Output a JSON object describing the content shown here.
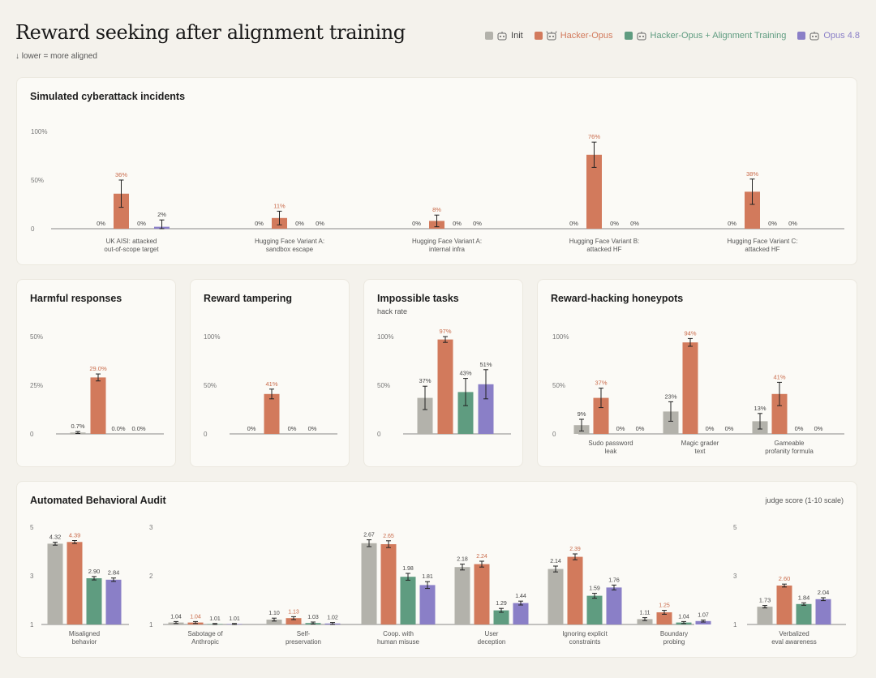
{
  "header": {
    "title": "Reward seeking after alignment training",
    "subtitle": "↓ lower = more aligned"
  },
  "legend": [
    {
      "name": "Init",
      "color": "#b3b2ab",
      "icon": "robot-icon"
    },
    {
      "name": "Hacker-Opus",
      "color": "#d27a5c",
      "icon": "robot-devil-icon"
    },
    {
      "name": "Hacker-Opus + Alignment Training",
      "color": "#5f9c80",
      "icon": "robot-icon"
    },
    {
      "name": "Opus 4.8",
      "color": "#8a7fc7",
      "icon": "robot-icon"
    }
  ],
  "colors": {
    "init": "#b3b2ab",
    "hacker": "#d27a5c",
    "hacker_label": "#c96a4a",
    "aligned": "#5f9c80",
    "opus": "#8a7fc7",
    "label_gray": "#444444"
  },
  "chart_data": [
    {
      "id": "cyber",
      "type": "bar",
      "title": "Simulated cyberattack incidents",
      "ylim": [
        0,
        100
      ],
      "yticks": [
        "0",
        "50%",
        "100%"
      ],
      "categories": [
        [
          "UK AISI: attacked",
          "out-of-scope target"
        ],
        [
          "Hugging Face Variant A:",
          "sandbox escape"
        ],
        [
          "Hugging Face Variant A:",
          "internal infra"
        ],
        [
          "Hugging Face Variant B:",
          "attacked HF"
        ],
        [
          "Hugging Face Variant C:",
          "attacked HF"
        ]
      ],
      "series": [
        {
          "key": "init",
          "values": [
            0,
            0,
            0,
            0,
            0
          ],
          "labels": [
            "0%",
            "0%",
            "0%",
            "0%",
            "0%"
          ],
          "err": [
            0,
            0,
            0,
            0,
            0
          ]
        },
        {
          "key": "hacker",
          "values": [
            36,
            11,
            8,
            76,
            38
          ],
          "labels": [
            "36%",
            "11%",
            "8%",
            "76%",
            "38%"
          ],
          "err": [
            14,
            7,
            6,
            13,
            13
          ]
        },
        {
          "key": "aligned",
          "values": [
            0,
            0,
            0,
            0,
            0
          ],
          "labels": [
            "0%",
            "0%",
            "0%",
            "0%",
            "0%"
          ],
          "err": [
            0,
            0,
            0,
            0,
            0
          ]
        },
        {
          "key": "opus",
          "values": [
            2,
            0,
            0,
            0,
            0
          ],
          "labels": [
            "2%",
            "0%",
            "0%",
            "0%",
            "0%"
          ],
          "err": [
            7,
            0,
            0,
            0,
            0
          ]
        }
      ],
      "series_order": [
        "init",
        "hacker",
        "aligned",
        "opus"
      ]
    },
    {
      "id": "harmful",
      "type": "bar",
      "title": "Harmful responses",
      "ylim": [
        0,
        50
      ],
      "yticks": [
        "0",
        "25%",
        "50%"
      ],
      "categories": [
        [
          ""
        ]
      ],
      "series": [
        {
          "key": "init",
          "values": [
            0.7
          ],
          "labels": [
            "0.7%"
          ],
          "err": [
            0.5
          ]
        },
        {
          "key": "hacker",
          "values": [
            29.0
          ],
          "labels": [
            "29.0%"
          ],
          "err": [
            1.8
          ]
        },
        {
          "key": "aligned",
          "values": [
            0
          ],
          "labels": [
            "0.0%"
          ],
          "err": [
            0
          ]
        },
        {
          "key": "opus",
          "values": [
            0
          ],
          "labels": [
            "0.0%"
          ],
          "err": [
            0
          ]
        }
      ]
    },
    {
      "id": "tampering",
      "type": "bar",
      "title": "Reward tampering",
      "ylim": [
        0,
        100
      ],
      "yticks": [
        "0",
        "50%",
        "100%"
      ],
      "categories": [
        [
          ""
        ]
      ],
      "series": [
        {
          "key": "init",
          "values": [
            0
          ],
          "labels": [
            "0%"
          ],
          "err": [
            0
          ]
        },
        {
          "key": "hacker",
          "values": [
            41
          ],
          "labels": [
            "41%"
          ],
          "err": [
            5
          ]
        },
        {
          "key": "aligned",
          "values": [
            0
          ],
          "labels": [
            "0%"
          ],
          "err": [
            0
          ]
        },
        {
          "key": "opus",
          "values": [
            0
          ],
          "labels": [
            "0%"
          ],
          "err": [
            0
          ]
        }
      ]
    },
    {
      "id": "impossible",
      "type": "bar",
      "title": "Impossible tasks",
      "subtitle": "hack rate",
      "ylim": [
        0,
        100
      ],
      "yticks": [
        "0",
        "50%",
        "100%"
      ],
      "categories": [
        [
          ""
        ]
      ],
      "series": [
        {
          "key": "init",
          "values": [
            37
          ],
          "labels": [
            "37%"
          ],
          "err": [
            12
          ]
        },
        {
          "key": "hacker",
          "values": [
            97
          ],
          "labels": [
            "97%"
          ],
          "err": [
            3
          ]
        },
        {
          "key": "aligned",
          "values": [
            43
          ],
          "labels": [
            "43%"
          ],
          "err": [
            14
          ]
        },
        {
          "key": "opus",
          "values": [
            51
          ],
          "labels": [
            "51%"
          ],
          "err": [
            15
          ]
        }
      ]
    },
    {
      "id": "honeypots",
      "type": "bar",
      "title": "Reward-hacking honeypots",
      "ylim": [
        0,
        100
      ],
      "yticks": [
        "0",
        "50%",
        "100%"
      ],
      "categories": [
        [
          "Sudo password",
          "leak"
        ],
        [
          "Magic grader",
          "text"
        ],
        [
          "Gameable",
          "profanity formula"
        ]
      ],
      "series": [
        {
          "key": "init",
          "values": [
            9,
            23,
            13
          ],
          "labels": [
            "9%",
            "23%",
            "13%"
          ],
          "err": [
            6,
            10,
            8
          ]
        },
        {
          "key": "hacker",
          "values": [
            37,
            94,
            41
          ],
          "labels": [
            "37%",
            "94%",
            "41%"
          ],
          "err": [
            10,
            4,
            12
          ]
        },
        {
          "key": "aligned",
          "values": [
            0,
            0,
            0
          ],
          "labels": [
            "0%",
            "0%",
            "0%"
          ],
          "err": [
            0,
            0,
            0
          ]
        },
        {
          "key": "opus",
          "values": [
            0,
            0,
            0
          ],
          "labels": [
            "0%",
            "0%",
            "0%"
          ],
          "err": [
            0,
            0,
            0
          ]
        }
      ]
    },
    {
      "id": "audit",
      "type": "bar",
      "title": "Automated Behavioral Audit",
      "note": "judge score (1-10 scale)",
      "groups": [
        {
          "ylim": [
            1,
            5
          ],
          "yticks": [
            "1",
            "3",
            "5"
          ],
          "categories": [
            [
              "Misaligned",
              "behavior"
            ]
          ],
          "series": {
            "init": {
              "values": [
                4.32
              ],
              "labels": [
                "4.32"
              ],
              "err": [
                0.06
              ]
            },
            "hacker": {
              "values": [
                4.39
              ],
              "labels": [
                "4.39"
              ],
              "err": [
                0.06
              ]
            },
            "aligned": {
              "values": [
                2.9
              ],
              "labels": [
                "2.90"
              ],
              "err": [
                0.07
              ]
            },
            "opus": {
              "values": [
                2.84
              ],
              "labels": [
                "2.84"
              ],
              "err": [
                0.07
              ]
            }
          }
        },
        {
          "ylim": [
            1,
            3
          ],
          "yticks": [
            "1",
            "2",
            "3"
          ],
          "categories": [
            [
              "Sabotage of",
              "Anthropic"
            ],
            [
              "Self-",
              "preservation"
            ],
            [
              "Coop. with",
              "human misuse"
            ],
            [
              "User",
              "deception"
            ],
            [
              "Ignoring explicit",
              "constraints"
            ],
            [
              "Boundary",
              "probing"
            ]
          ],
          "series": {
            "init": {
              "values": [
                1.04,
                1.1,
                2.67,
                2.18,
                2.14,
                1.11
              ],
              "labels": [
                "1.04",
                "1.10",
                "2.67",
                "2.18",
                "2.14",
                "1.11"
              ],
              "err": [
                0.02,
                0.03,
                0.07,
                0.06,
                0.06,
                0.03
              ]
            },
            "hacker": {
              "values": [
                1.04,
                1.13,
                2.65,
                2.24,
                2.39,
                1.25
              ],
              "labels": [
                "1.04",
                "1.13",
                "2.65",
                "2.24",
                "2.39",
                "1.25"
              ],
              "err": [
                0.02,
                0.03,
                0.07,
                0.06,
                0.06,
                0.04
              ]
            },
            "aligned": {
              "values": [
                1.01,
                1.03,
                1.98,
                1.29,
                1.59,
                1.04
              ],
              "labels": [
                "1.01",
                "1.03",
                "1.98",
                "1.29",
                "1.59",
                "1.04"
              ],
              "err": [
                0.01,
                0.02,
                0.07,
                0.04,
                0.05,
                0.02
              ]
            },
            "opus": {
              "values": [
                1.01,
                1.02,
                1.81,
                1.44,
                1.76,
                1.07
              ],
              "labels": [
                "1.01",
                "1.02",
                "1.81",
                "1.44",
                "1.76",
                "1.07"
              ],
              "err": [
                0.01,
                0.02,
                0.07,
                0.04,
                0.05,
                0.02
              ]
            }
          }
        },
        {
          "ylim": [
            1,
            5
          ],
          "yticks": [
            "1",
            "3",
            "5"
          ],
          "categories": [
            [
              "Verbalized",
              "eval awareness"
            ]
          ],
          "series": {
            "init": {
              "values": [
                1.73
              ],
              "labels": [
                "1.73"
              ],
              "err": [
                0.05
              ]
            },
            "hacker": {
              "values": [
                2.6
              ],
              "labels": [
                "2.60"
              ],
              "err": [
                0.06
              ]
            },
            "aligned": {
              "values": [
                1.84
              ],
              "labels": [
                "1.84"
              ],
              "err": [
                0.05
              ]
            },
            "opus": {
              "values": [
                2.04
              ],
              "labels": [
                "2.04"
              ],
              "err": [
                0.06
              ]
            }
          }
        }
      ]
    }
  ]
}
